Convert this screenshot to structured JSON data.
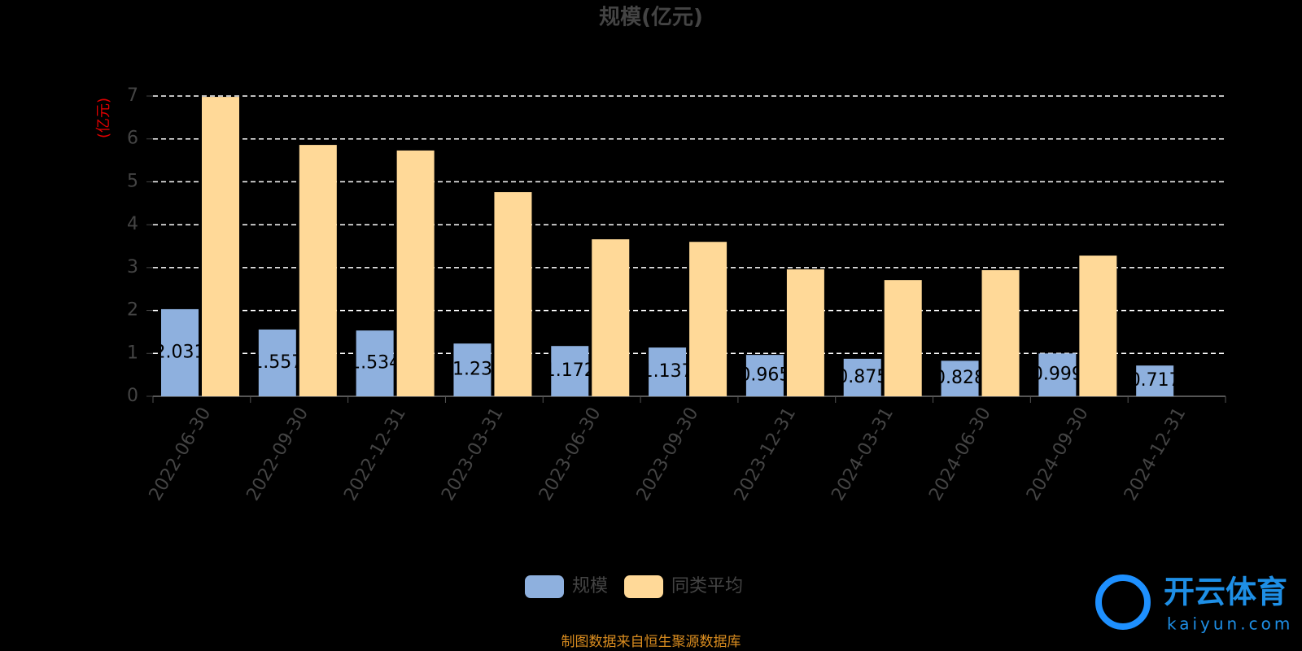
{
  "chart_data": {
    "type": "bar",
    "title": "规模(亿元)",
    "y_label": "(亿元)",
    "categories": [
      "2022-06-30",
      "2022-09-30",
      "2022-12-31",
      "2023-03-31",
      "2023-06-30",
      "2023-09-30",
      "2023-12-31",
      "2024-03-31",
      "2024-06-30",
      "2024-09-30",
      "2024-12-31"
    ],
    "series": [
      {
        "name": "规模",
        "color": "#8eb0de",
        "values": [
          2.031,
          1.557,
          1.534,
          1.23,
          1.172,
          1.137,
          0.965,
          0.875,
          0.828,
          0.999,
          0.717
        ],
        "labels": true
      },
      {
        "name": "同类平均",
        "color": "#ffd998",
        "values": [
          6.98,
          5.86,
          5.73,
          4.76,
          3.66,
          3.6,
          2.96,
          2.71,
          2.94,
          3.28,
          null
        ],
        "labels": false
      }
    ],
    "ylim": [
      0,
      7
    ],
    "yticks": [
      0,
      1,
      2,
      3,
      4,
      5,
      6,
      7
    ],
    "grid": true,
    "source": "制图数据来自恒生聚源数据库",
    "watermark": {
      "brand": "开云体育",
      "site": "kaiyun.com"
    }
  }
}
